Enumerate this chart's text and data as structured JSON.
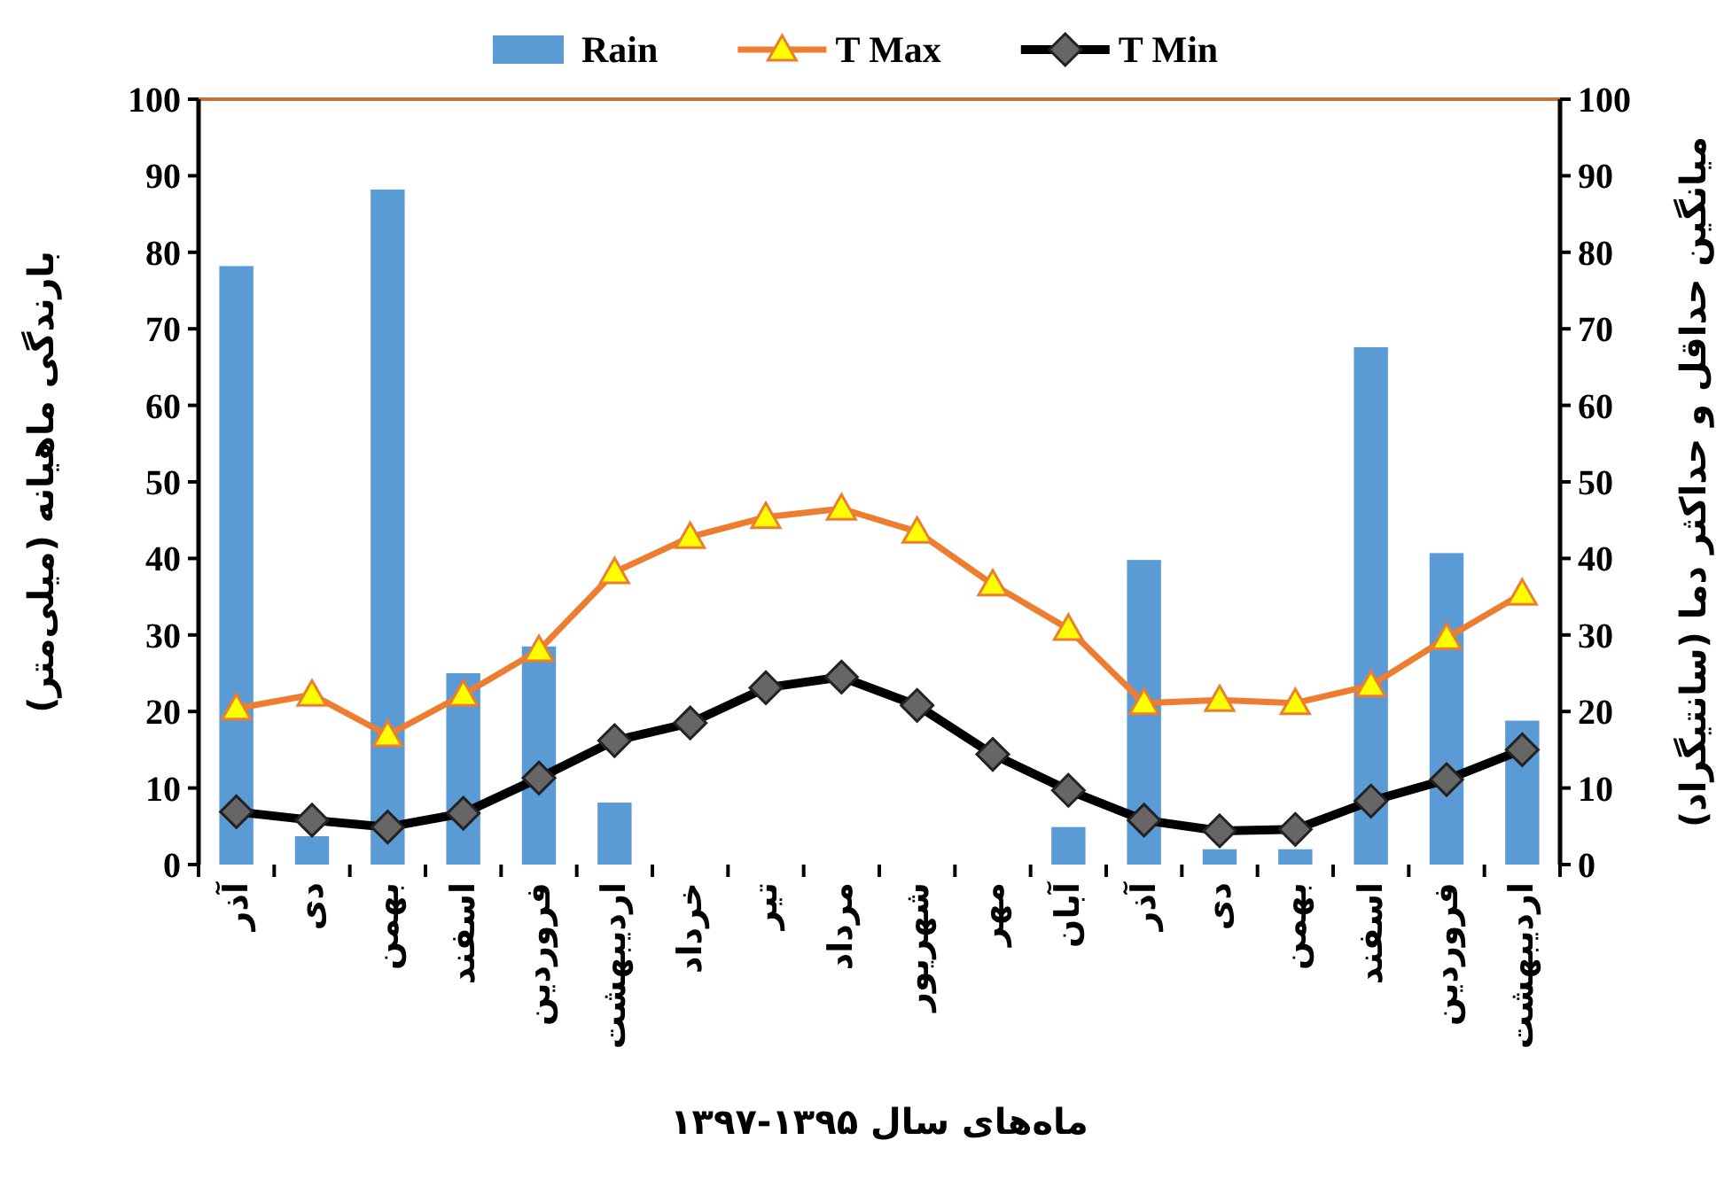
{
  "chart_data": {
    "type": "bar",
    "xlabel": "ماه‌های سال ۱۳۹۵-۱۳۹۷",
    "ylabel": "بارندگی ماهیانه (میلی‌متر)",
    "y2label": "میانگین حداقل و حداکثر دما (سانتیگراد)",
    "categories": [
      "آذر",
      "دی",
      "بهمن",
      "اسفند",
      "فروردین",
      "اردیبهشت",
      "خرداد",
      "تیر",
      "مرداد",
      "شهریور",
      "مهر",
      "آبان",
      "آذر",
      "دی",
      "بهمن",
      "اسفند",
      "فروردین",
      "اردیبهشت"
    ],
    "series": [
      {
        "name": "Rain",
        "color": "#5b9bd5",
        "values": [
          78.2,
          3.7,
          88.2,
          25,
          28.5,
          8.1,
          0,
          0,
          0,
          0,
          0,
          4.9,
          39.8,
          2,
          2,
          67.6,
          40.7,
          18.8
        ]
      },
      {
        "name": "T Max",
        "type": "line",
        "axis": "y2",
        "color": "#ed7d31",
        "marker": "triangle",
        "values": [
          20.4,
          22.2,
          16.9,
          22.2,
          28,
          38.2,
          42.8,
          45.4,
          46.5,
          43.5,
          36.6,
          30.8,
          21.1,
          21.5,
          21.1,
          23.4,
          29.6,
          35.4
        ]
      },
      {
        "name": "T Min",
        "type": "line",
        "axis": "y2",
        "color": "#000000",
        "marker": "diamond",
        "values": [
          6.9,
          5.8,
          4.9,
          6.7,
          11.3,
          16.2,
          18.5,
          23.1,
          24.5,
          20.8,
          14.4,
          9.7,
          5.8,
          4.4,
          4.6,
          8.3,
          11.1,
          15.0
        ]
      }
    ],
    "ylim": [
      0,
      100
    ],
    "yticks": [
      0,
      10,
      20,
      30,
      40,
      50,
      60,
      70,
      80,
      90,
      100
    ],
    "y2lim": [
      0,
      100
    ],
    "y2ticks": [
      0,
      10,
      20,
      30,
      40,
      50,
      60,
      70,
      80,
      90,
      100
    ],
    "grid": false,
    "legend": "top"
  }
}
